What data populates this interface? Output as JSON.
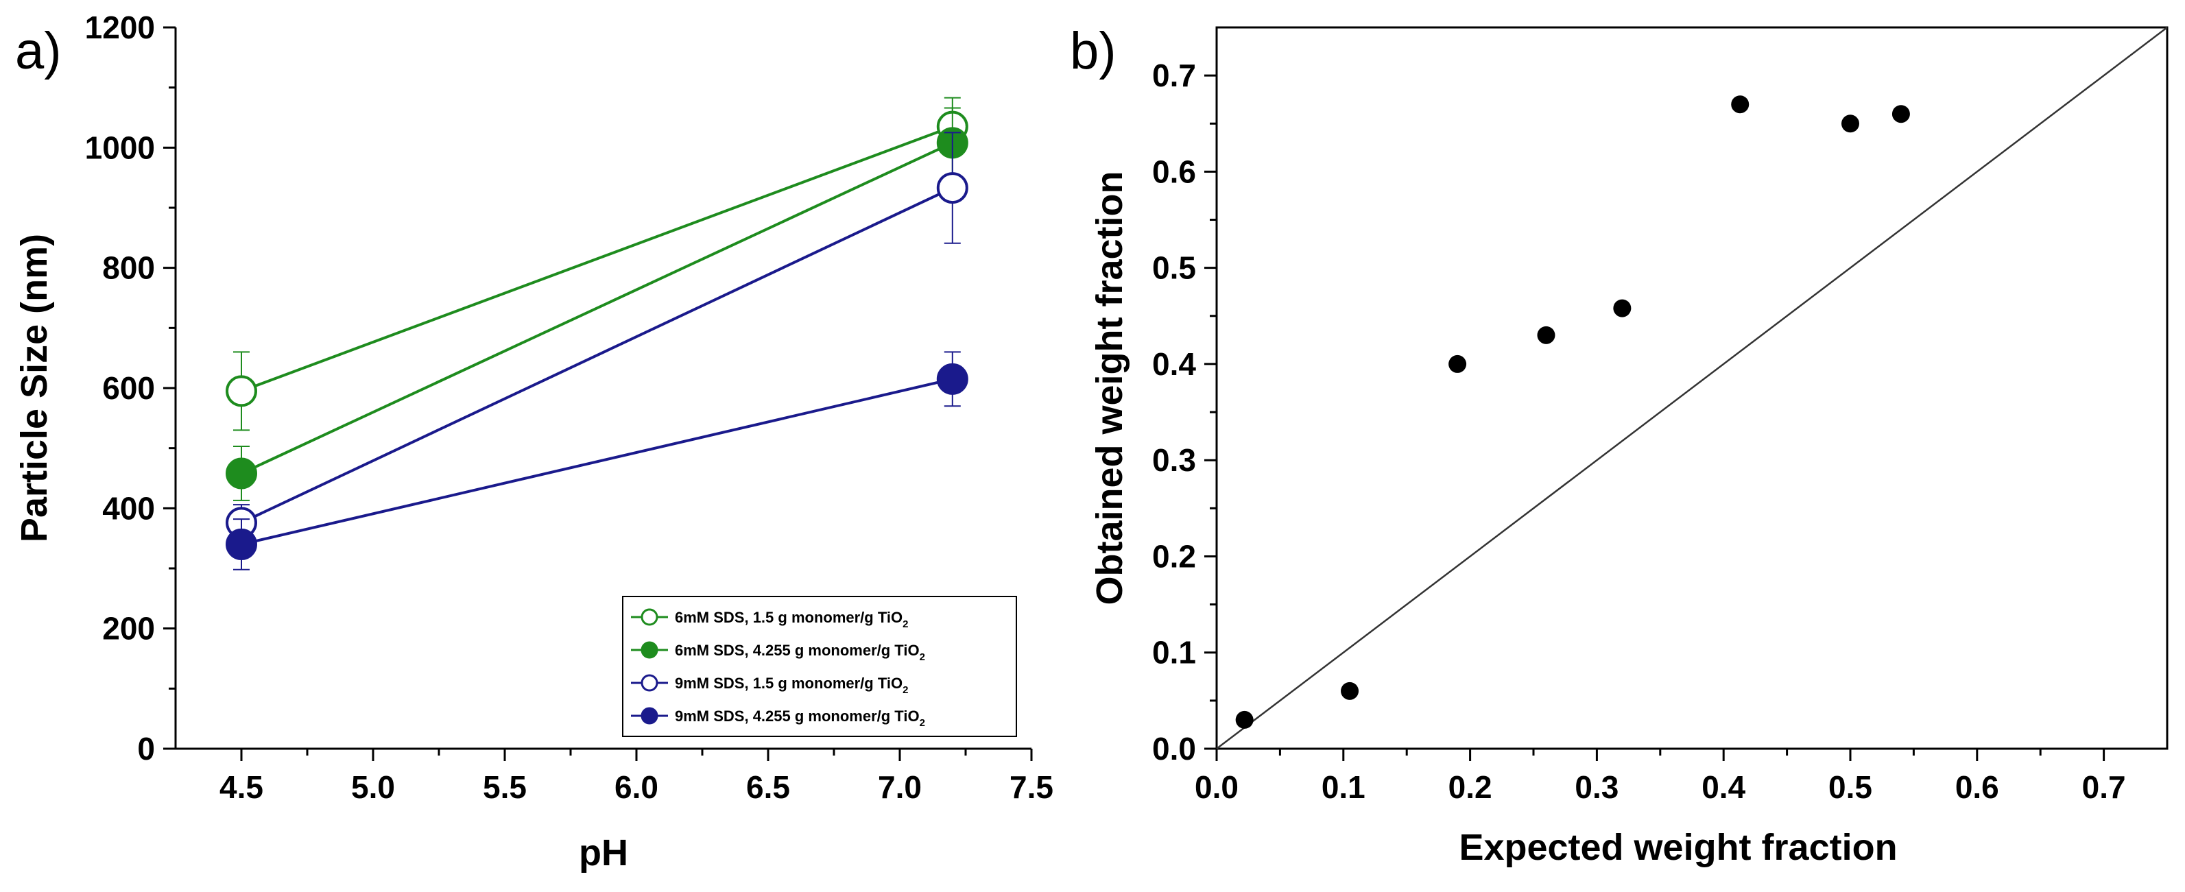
{
  "chart_data": [
    {
      "panel": "a)",
      "type": "line",
      "xlabel": "pH",
      "ylabel": "Particle Size (nm)",
      "xlim": [
        4.25,
        7.5
      ],
      "ylim": [
        0,
        1200
      ],
      "xticks": [
        "4.5",
        "5.0",
        "5.5",
        "6.0",
        "6.5",
        "7.0",
        "7.5"
      ],
      "yticks": [
        "0",
        "200",
        "400",
        "600",
        "800",
        "1000",
        "1200"
      ],
      "x": [
        4.5,
        7.2
      ],
      "series": [
        {
          "name": "6mM SDS, 1.5 g monomer/g TiO",
          "sub": "2",
          "color": "#1e8c1e",
          "filled": false,
          "values": [
            595,
            1035
          ],
          "errors": [
            65,
            48
          ]
        },
        {
          "name": "6mM SDS, 4.255 g monomer/g TiO",
          "sub": "2",
          "color": "#1e8c1e",
          "filled": true,
          "values": [
            458,
            1008
          ],
          "errors": [
            45,
            58
          ]
        },
        {
          "name": "9mM SDS, 1.5 g monomer/g TiO",
          "sub": "2",
          "color": "#1a1a8c",
          "filled": false,
          "values": [
            376,
            933
          ],
          "errors": [
            30,
            92
          ]
        },
        {
          "name": "9mM SDS, 4.255 g monomer/g TiO",
          "sub": "2",
          "color": "#1a1a8c",
          "filled": true,
          "values": [
            340,
            615
          ],
          "errors": [
            42,
            45
          ]
        }
      ],
      "legend": "bottom-right"
    },
    {
      "panel": "b)",
      "type": "scatter",
      "xlabel": "Expected weight fraction",
      "ylabel": "Obtained weight fraction",
      "xlim": [
        0,
        0.75
      ],
      "ylim": [
        0,
        0.75
      ],
      "xticks": [
        "0.0",
        "0.1",
        "0.2",
        "0.3",
        "0.4",
        "0.5",
        "0.6",
        "0.7"
      ],
      "yticks": [
        "0.0",
        "0.1",
        "0.2",
        "0.3",
        "0.4",
        "0.5",
        "0.6",
        "0.7"
      ],
      "points": [
        {
          "x": 0.022,
          "y": 0.03
        },
        {
          "x": 0.105,
          "y": 0.06
        },
        {
          "x": 0.19,
          "y": 0.4
        },
        {
          "x": 0.26,
          "y": 0.43
        },
        {
          "x": 0.32,
          "y": 0.458
        },
        {
          "x": 0.413,
          "y": 0.67
        },
        {
          "x": 0.5,
          "y": 0.65
        },
        {
          "x": 0.54,
          "y": 0.66
        }
      ],
      "reference_line": {
        "from": [
          0,
          0
        ],
        "to": [
          0.75,
          0.75
        ]
      },
      "color": "#000000"
    }
  ]
}
